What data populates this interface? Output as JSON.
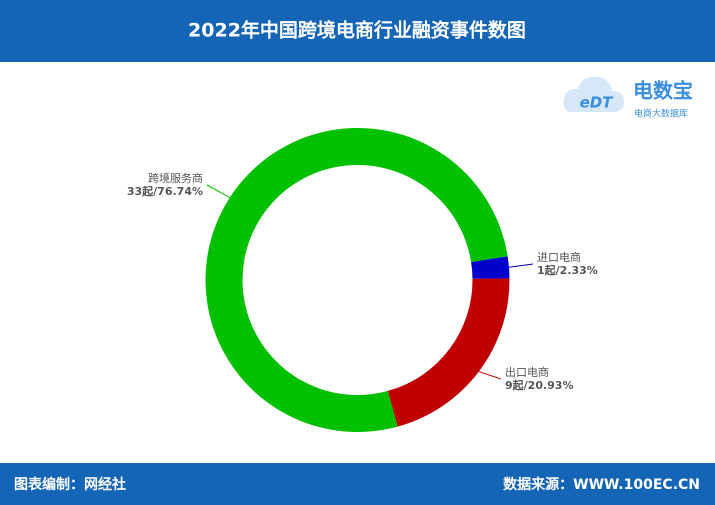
{
  "header": {
    "title": "2022年中国跨境电商行业融资事件数图"
  },
  "logo": {
    "mark": "eDT",
    "name": "电数宝",
    "tagline": "电商大数据库"
  },
  "chart_data": {
    "type": "donut",
    "categories": [
      "进口电商",
      "出口电商",
      "跨境服务商"
    ],
    "values": [
      1,
      9,
      33
    ],
    "value_labels": [
      "1起/2.33%",
      "9起/20.93%",
      "33起/76.74%"
    ],
    "colors": [
      "#0000cc",
      "#c00000",
      "#00c000"
    ]
  },
  "footer": {
    "left": "图表编制：网经社",
    "right": "数据来源：WWW.100EC.CN"
  }
}
